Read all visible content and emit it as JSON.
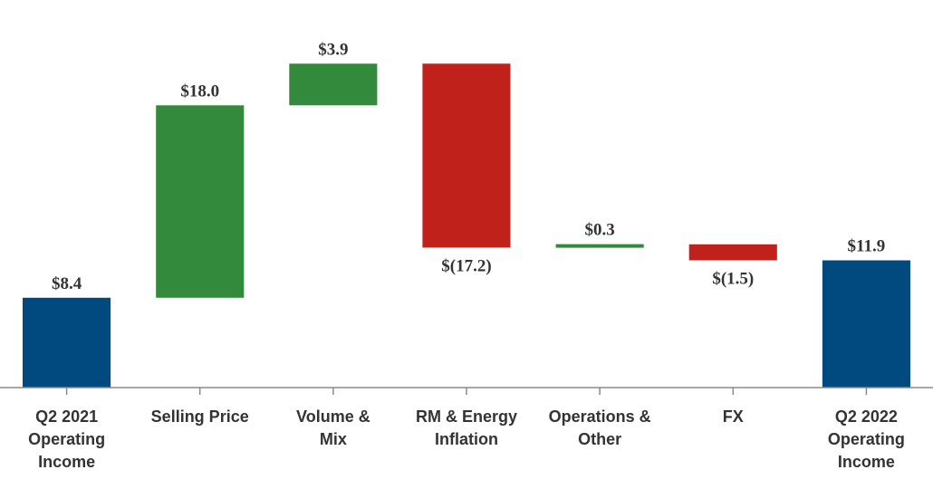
{
  "chart_data": {
    "type": "bar",
    "subtype": "waterfall",
    "categories": [
      [
        "Q2 2021",
        "Operating",
        "Income"
      ],
      [
        "Selling Price"
      ],
      [
        "Volume &",
        "Mix"
      ],
      [
        "RM & Energy",
        "Inflation"
      ],
      [
        "Operations &",
        "Other"
      ],
      [
        "FX"
      ],
      [
        "Q2 2022",
        "Operating",
        "Income"
      ]
    ],
    "values": [
      8.4,
      18.0,
      3.9,
      -17.2,
      0.3,
      -1.5,
      11.9
    ],
    "kinds": [
      "total",
      "delta",
      "delta",
      "delta",
      "delta",
      "delta",
      "total"
    ],
    "value_labels": [
      "$8.4",
      "$18.0",
      "$3.9",
      "$(17.2)",
      "$0.3",
      "$(1.5)",
      "$11.9"
    ],
    "ylim": [
      0,
      31
    ],
    "grid": false,
    "colors": {
      "total": "#004a80",
      "increase": "#348a3c",
      "decrease": "#c0221b",
      "axis": "#8a8a8a",
      "text": "#333333"
    }
  }
}
